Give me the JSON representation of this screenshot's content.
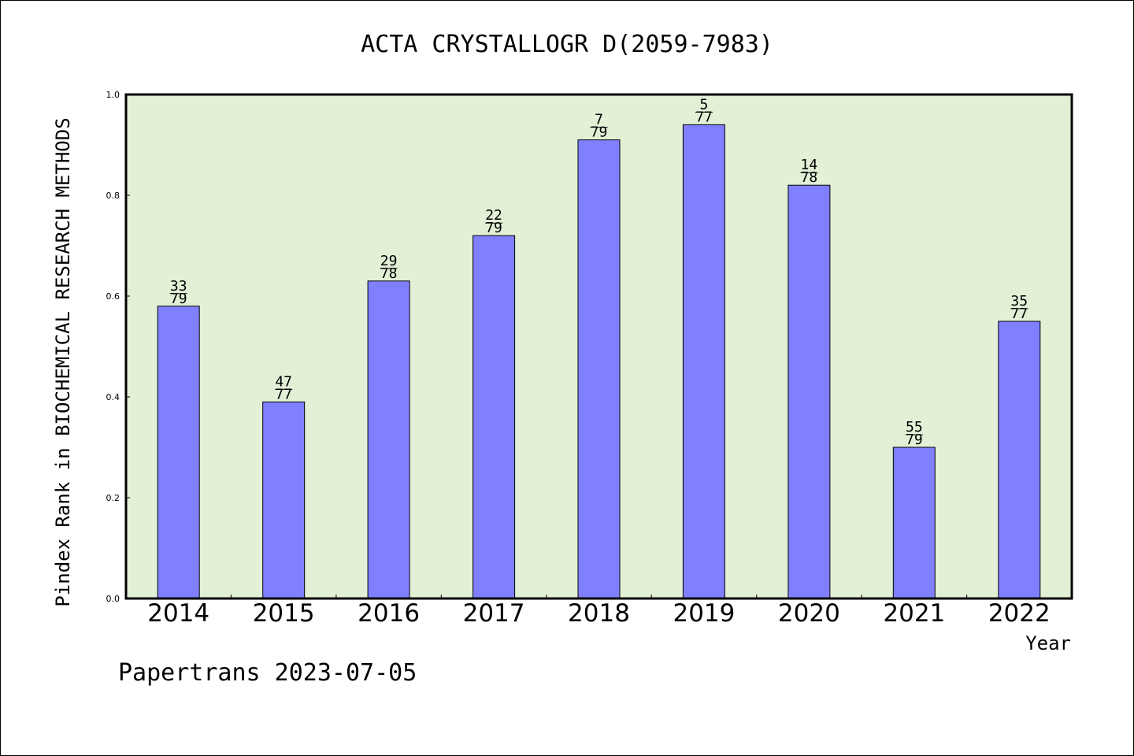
{
  "chart_data": {
    "type": "bar",
    "title": "ACTA CRYSTALLOGR D(2059-7983)",
    "ylabel": "Pindex Rank in BIOCHEMICAL RESEARCH METHODS",
    "xlabel": "Year",
    "categories": [
      "2014",
      "2015",
      "2016",
      "2017",
      "2018",
      "2019",
      "2020",
      "2021",
      "2022"
    ],
    "values": [
      0.58,
      0.39,
      0.63,
      0.72,
      0.91,
      0.94,
      0.82,
      0.3,
      0.55
    ],
    "rank_numerators": [
      "33",
      "47",
      "29",
      "22",
      "7",
      "5",
      "14",
      "55",
      "35"
    ],
    "rank_denominators": [
      "79",
      "77",
      "78",
      "79",
      "79",
      "77",
      "78",
      "79",
      "77"
    ],
    "ylim": [
      0,
      1.0
    ],
    "yticks": [
      "0.0",
      "0.2",
      "0.4",
      "0.6",
      "0.8",
      "1.0"
    ],
    "footer": "Papertrans 2023-07-05",
    "grid": false,
    "legend": "none",
    "colors": {
      "bar": "#8080ff",
      "plot_bg": "#e2f0d6",
      "axis": "#000000"
    }
  }
}
